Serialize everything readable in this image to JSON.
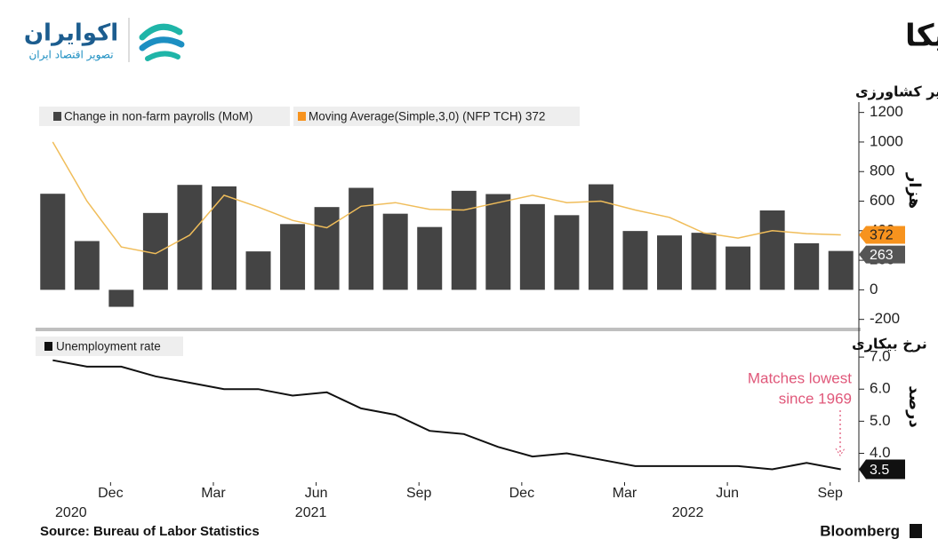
{
  "header": {
    "title": "عملکرد بهتر از انتظار بازار کار آمریکا",
    "logo_name": "اکوایران",
    "logo_tagline": "تصویر اقتصاد ایران"
  },
  "chart_data": [
    {
      "type": "bar",
      "title": "میزان استخدام نیروی کار در بخش غیر کشاورزی",
      "y_label": "هزار",
      "series": [
        {
          "name": "Change in non-farm payrolls (MoM)",
          "color": "#444444",
          "values": [
            650,
            330,
            -115,
            520,
            710,
            700,
            260,
            445,
            560,
            690,
            515,
            425,
            670,
            648,
            580,
            505,
            714,
            398,
            368,
            386,
            293,
            537,
            315,
            263
          ]
        },
        {
          "name": "Moving Average(Simple,3,0) (NFP TCH) 372",
          "type": "line",
          "color": "#f0bd5a",
          "label_color": "#f7931e",
          "values": [
            1000,
            600,
            290,
            245,
            370,
            640,
            560,
            470,
            420,
            565,
            590,
            545,
            540,
            590,
            640,
            590,
            600,
            540,
            490,
            385,
            350,
            400,
            380,
            372
          ]
        }
      ],
      "ylim": [
        -250,
        1270
      ],
      "yticks": [
        -200,
        0,
        200,
        400,
        600,
        800,
        1000,
        1200
      ]
    },
    {
      "type": "line",
      "title": "نرخ بیکاری",
      "y_label": "درصد",
      "categories": [
        null,
        null,
        "Dec",
        null,
        null,
        "Mar",
        null,
        null,
        "Jun",
        null,
        null,
        "Sep",
        null,
        null,
        "Dec",
        null,
        null,
        "Mar",
        null,
        null,
        "Jun",
        null,
        null,
        "Sep"
      ],
      "years": [
        null,
        "2020",
        null,
        null,
        null,
        null,
        null,
        null,
        "2021",
        null,
        null,
        null,
        null,
        null,
        null,
        null,
        null,
        null,
        null,
        "2022",
        null,
        null,
        null,
        null
      ],
      "series": [
        {
          "name": "Unemployment rate",
          "color": "#111111",
          "values": [
            6.9,
            6.7,
            6.7,
            6.4,
            6.2,
            6.0,
            6.0,
            5.8,
            5.9,
            5.4,
            5.2,
            4.7,
            4.6,
            4.2,
            3.9,
            4.0,
            3.8,
            3.6,
            3.6,
            3.6,
            3.6,
            3.5,
            3.7,
            3.5
          ]
        }
      ],
      "annotation": [
        "Matches lowest",
        "since 1969"
      ],
      "annotation_color": "#e0587a",
      "ylim": [
        3.1,
        7.75
      ],
      "yticks": [
        {
          "value": 4,
          "label": "4.0"
        },
        {
          "value": 5,
          "label": "5.0"
        },
        {
          "value": 6,
          "label": "6.0"
        },
        {
          "value": 7,
          "label": "7.0"
        }
      ]
    }
  ],
  "footer": {
    "source": "Source: Bureau of Labor Statistics",
    "brand": "Bloomberg"
  }
}
